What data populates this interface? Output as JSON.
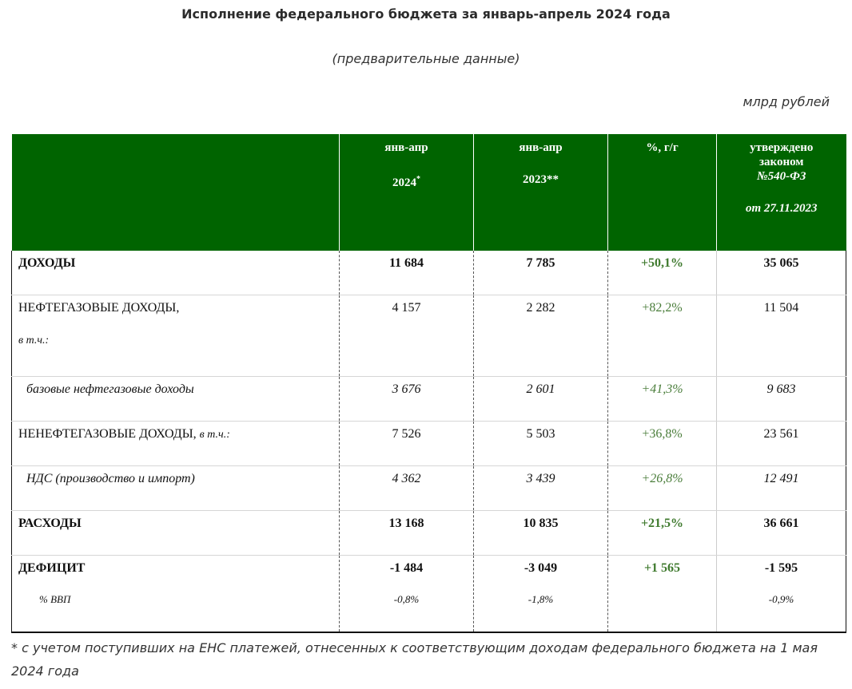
{
  "header": {
    "title": "Исполнение федерального бюджета за январь-апрель 2024 года",
    "subtitle": "(предварительные данные)",
    "units": "млрд рублей"
  },
  "table": {
    "columns": [
      {
        "line1": "",
        "line2": ""
      },
      {
        "line1": "янв-апр",
        "line2": "2024",
        "mark": "*"
      },
      {
        "line1": "янв-апр",
        "line2": "2023**"
      },
      {
        "line1": "%, г/г",
        "line2": ""
      },
      {
        "line1": "утверждено",
        "line1b": "законом",
        "line1c": "№540-ФЗ",
        "line2": "от 27.11.2023"
      }
    ],
    "rows": [
      {
        "label": "ДОХОДЫ",
        "v2024": "11 684",
        "v2023": "7 785",
        "pct": "+50,1%",
        "law": "35 065"
      },
      {
        "label": "НЕФТЕГАЗОВЫЕ ДОХОДЫ,",
        "label_sub": "в т.ч.:",
        "v2024": "4 157",
        "v2023": "2 282",
        "pct": "+82,2%",
        "law": "11 504"
      },
      {
        "label": "базовые нефтегазовые доходы",
        "v2024": "3 676",
        "v2023": "2 601",
        "pct": "+41,3%",
        "law": "9 683"
      },
      {
        "label": "НЕНЕФТЕГАЗОВЫЕ ДОХОДЫ,",
        "label_sub": "в т.ч.:",
        "v2024": "7 526",
        "v2023": "5 503",
        "pct": "+36,8%",
        "law": "23 561"
      },
      {
        "label": "НДС (производство и импорт)",
        "v2024": "4 362",
        "v2023": "3 439",
        "pct": "+26,8%",
        "law": "12 491"
      },
      {
        "label": "РАСХОДЫ",
        "v2024": "13 168",
        "v2023": "10 835",
        "pct": "+21,5%",
        "law": "36 661"
      },
      {
        "label": "ДЕФИЦИТ",
        "label_sub": "% ВВП",
        "v2024": "-1 484",
        "v2024_gdp": "-0,8%",
        "v2023": "-3 049",
        "v2023_gdp": "-1,8%",
        "pct": "+1 565",
        "law": "-1 595",
        "law_gdp": "-0,9%"
      }
    ]
  },
  "footnote": "* с учетом поступивших на ЕНС платежей, отнесенных к соответствующим доходам федерального бюджета на 1 мая 2024 года",
  "colors": {
    "header_bg": "#006400",
    "pct_green": "#4a7d3a"
  }
}
